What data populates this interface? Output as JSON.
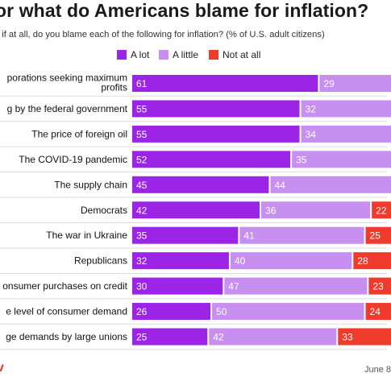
{
  "title": "or what do Americans blame for inflation?",
  "subtitle": ", if at all, do you blame each of the following for inflation? (% of U.S. adult citizens)",
  "footer": {
    "logo": "v",
    "date": "June 8"
  },
  "colors": {
    "a_lot": "#9b24e6",
    "a_little": "#c78ff0",
    "not_at_all": "#ef3b2c"
  },
  "chart_data": {
    "type": "bar",
    "orientation": "horizontal",
    "stacked": true,
    "title": "or what do Americans blame for inflation?",
    "subtitle": ", if at all, do you blame each of the following for inflation? (% of U.S. adult citizens)",
    "legend_position": "top",
    "categories": [
      [
        "porations seeking maximum",
        "profits"
      ],
      [
        "g by the federal government"
      ],
      [
        "The price of foreign oil"
      ],
      [
        "The COVID-19 pandemic"
      ],
      [
        "The supply chain"
      ],
      [
        "Democrats"
      ],
      [
        "The war in Ukraine"
      ],
      [
        "Republicans"
      ],
      [
        "onsumer purchases on credit"
      ],
      [
        "e level of consumer demand"
      ],
      [
        "ge demands by large unions"
      ]
    ],
    "series": [
      {
        "name": "A lot",
        "color": "#9b24e6",
        "values": [
          61,
          55,
          55,
          52,
          45,
          42,
          35,
          32,
          30,
          26,
          25
        ]
      },
      {
        "name": "A little",
        "color": "#c78ff0",
        "values": [
          29,
          32,
          34,
          35,
          44,
          36,
          41,
          40,
          47,
          50,
          42
        ]
      },
      {
        "name": "Not at all",
        "color": "#ef3b2c",
        "values": [
          null,
          null,
          null,
          null,
          null,
          22,
          25,
          28,
          23,
          24,
          33
        ]
      }
    ],
    "xlim": [
      0,
      100
    ]
  }
}
